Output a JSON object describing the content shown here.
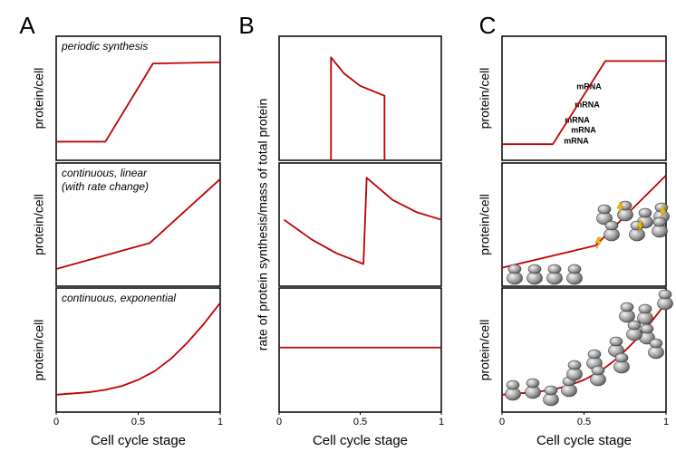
{
  "chart_data": [
    {
      "type": "line",
      "panel": "A",
      "ylabel": "protein/cell",
      "annotations": [
        "periodic synthesis"
      ],
      "color": "#c00000",
      "x": [
        0,
        0.3,
        0.59,
        1
      ],
      "values": [
        0.15,
        0.15,
        0.78,
        0.79
      ],
      "xlim": [
        0,
        1
      ],
      "ylim": [
        0,
        1
      ]
    },
    {
      "type": "line",
      "ylabel": "protein/cell",
      "annotations": [
        "continuous, linear",
        "(with rate change)"
      ],
      "color": "#c00000",
      "x": [
        0,
        0.57,
        1
      ],
      "values": [
        0.14,
        0.35,
        0.87
      ],
      "xlim": [
        0,
        1
      ],
      "ylim": [
        0,
        1
      ]
    },
    {
      "type": "line",
      "ylabel": "protein/cell",
      "annotations": [
        "continuous, exponential"
      ],
      "color": "#c00000",
      "x": [
        0,
        0.1,
        0.2,
        0.3,
        0.4,
        0.5,
        0.6,
        0.7,
        0.8,
        0.9,
        1
      ],
      "values": [
        0.14,
        0.15,
        0.16,
        0.18,
        0.21,
        0.26,
        0.33,
        0.43,
        0.56,
        0.71,
        0.88
      ],
      "xlim": [
        0,
        1
      ],
      "ylim": [
        0,
        1
      ],
      "xticks": [
        0,
        0.5,
        1
      ],
      "xlabel": "Cell cycle stage"
    },
    {
      "type": "line",
      "panel": "B",
      "color": "#c00000",
      "x": [
        0.32,
        0.32,
        0.4,
        0.5,
        0.65,
        0.65
      ],
      "values": [
        0,
        0.83,
        0.7,
        0.6,
        0.52,
        0
      ],
      "xlim": [
        0,
        1
      ],
      "ylim": [
        0,
        1
      ]
    },
    {
      "type": "line",
      "ylabel": "rate of protein synthesis/mass of total protein",
      "color": "#c00000",
      "x": [
        0.03,
        0.2,
        0.35,
        0.52,
        0.54,
        0.7,
        0.85,
        1
      ],
      "values": [
        0.54,
        0.38,
        0.27,
        0.18,
        0.88,
        0.7,
        0.6,
        0.54
      ],
      "xlim": [
        0,
        1
      ],
      "ylim": [
        0,
        1
      ]
    },
    {
      "type": "line",
      "color": "#c00000",
      "x": [
        0,
        1
      ],
      "values": [
        0.52,
        0.52
      ],
      "xlim": [
        0,
        1
      ],
      "ylim": [
        0,
        1
      ],
      "xticks": [
        0,
        0.5,
        1
      ],
      "xlabel": "Cell cycle stage"
    },
    {
      "type": "line",
      "panel": "C",
      "ylabel": "protein/cell",
      "annotations": [
        "mRNA",
        "mRNA",
        "mRNA",
        "mRNA",
        "mRNA"
      ],
      "color": "#c00000",
      "x": [
        0,
        0.31,
        0.63,
        1
      ],
      "values": [
        0.13,
        0.13,
        0.8,
        0.8
      ],
      "xlim": [
        0,
        1
      ],
      "ylim": [
        0,
        1
      ]
    },
    {
      "type": "line",
      "ylabel": "protein/cell",
      "color": "#c00000",
      "x": [
        0,
        0.57,
        1
      ],
      "values": [
        0.15,
        0.33,
        0.9
      ],
      "xlim": [
        0,
        1
      ],
      "ylim": [
        0,
        1
      ]
    },
    {
      "type": "line",
      "ylabel": "protein/cell",
      "color": "#c00000",
      "x": [
        0,
        0.1,
        0.2,
        0.3,
        0.4,
        0.5,
        0.6,
        0.7,
        0.8,
        0.9,
        1
      ],
      "values": [
        0.14,
        0.15,
        0.16,
        0.18,
        0.21,
        0.26,
        0.33,
        0.43,
        0.56,
        0.71,
        0.88
      ],
      "xlim": [
        0,
        1
      ],
      "ylim": [
        0,
        1
      ],
      "xticks": [
        0,
        0.5,
        1
      ],
      "xlabel": "Cell cycle stage"
    }
  ]
}
